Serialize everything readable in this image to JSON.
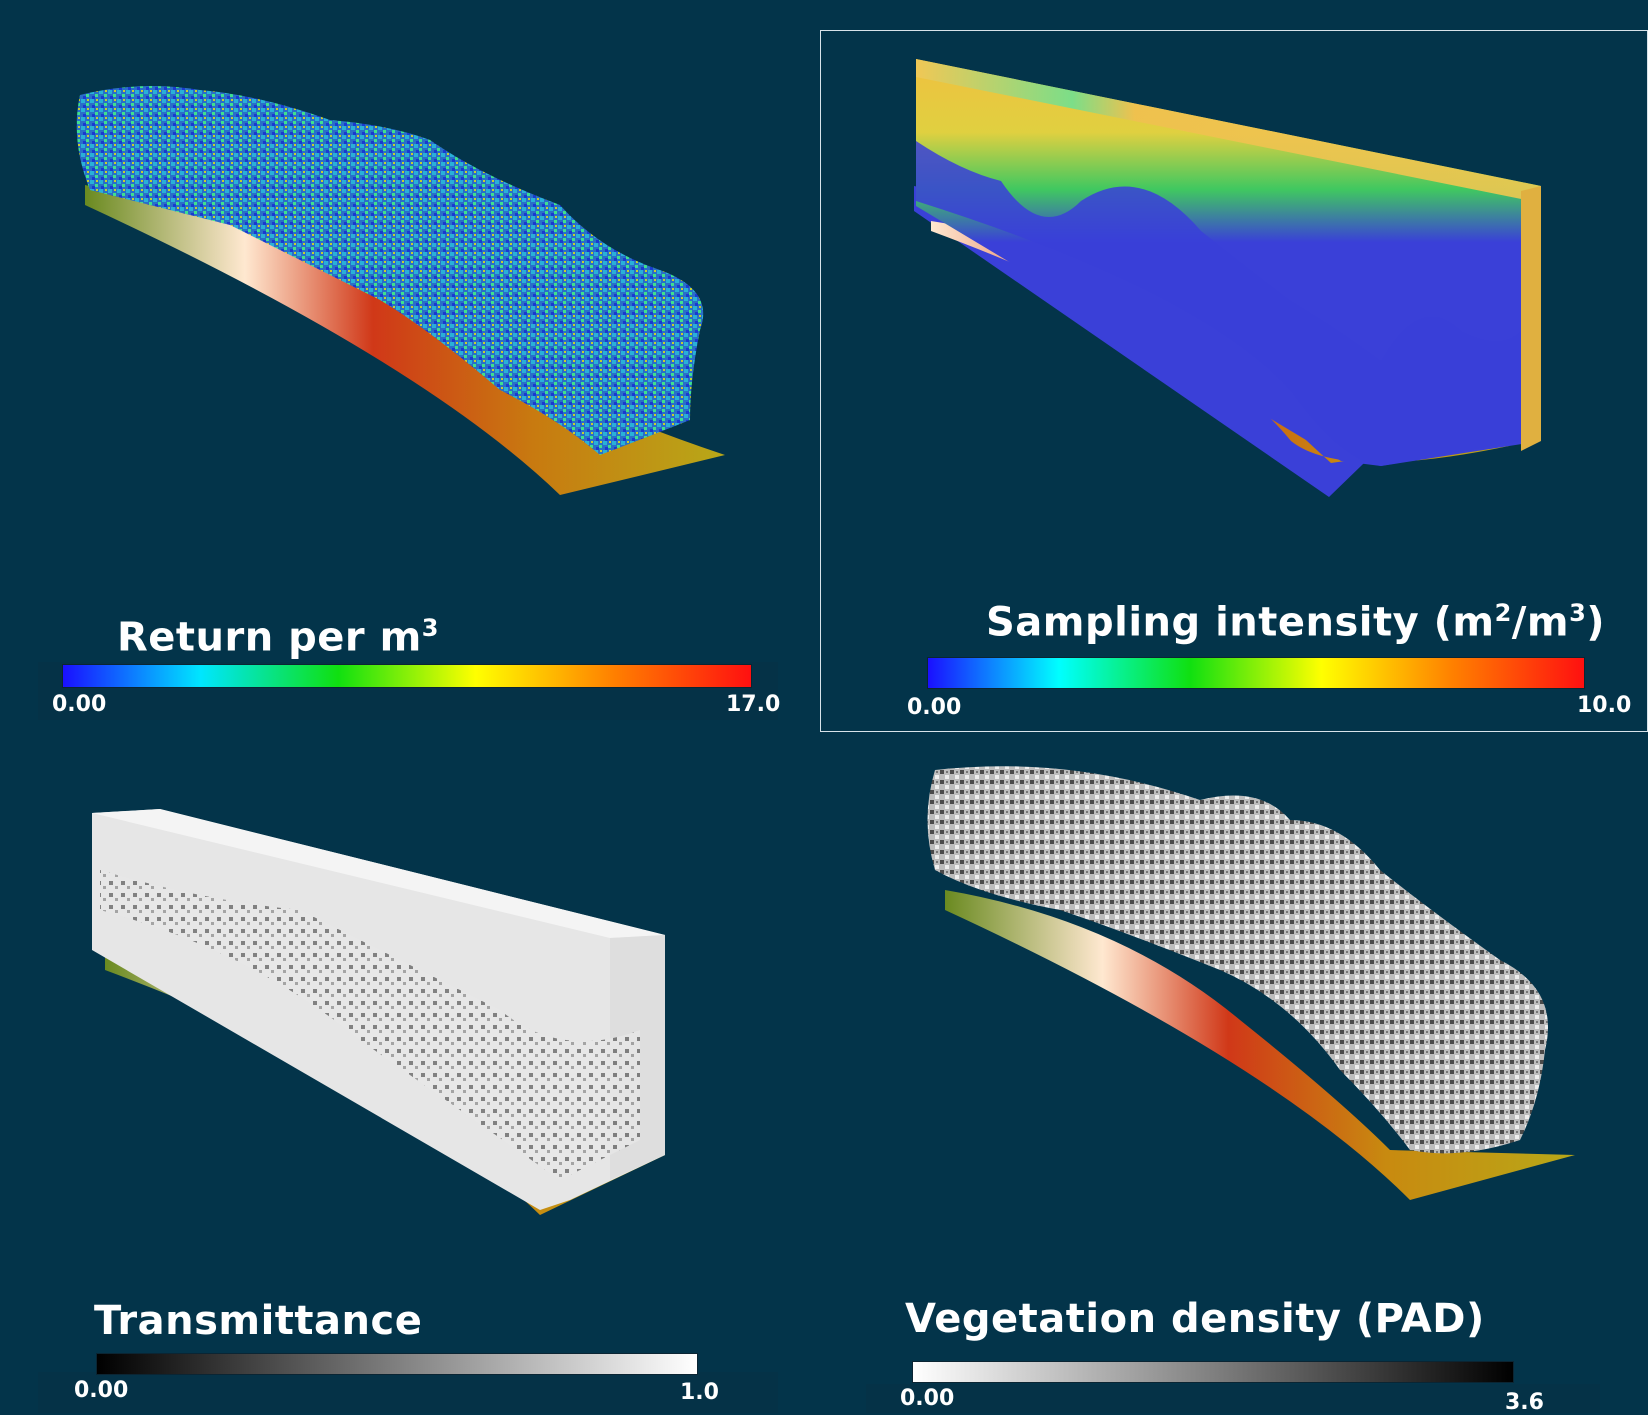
{
  "panels": {
    "returns": {
      "title_main": "Return per m",
      "title_sup": "3",
      "min": "0.00",
      "max": "17.0",
      "colormap": [
        "#1a10ff",
        "#00e6ff",
        "#10e010",
        "#ffff00",
        "#ff8000",
        "#ff1010"
      ]
    },
    "sampling": {
      "title_main": "Sampling intensity (m",
      "title_sup1": "2",
      "title_mid": "/m",
      "title_sup2": "3",
      "title_end": ")",
      "min": "0.00",
      "max": "10.0",
      "colormap": [
        "#1a10ff",
        "#00ffff",
        "#10e010",
        "#ffff00",
        "#ff8000",
        "#ff1010"
      ]
    },
    "transmittance": {
      "title": "Transmittance",
      "min": "0.00",
      "max": "1.0",
      "colormap": [
        "#000000",
        "#ffffff"
      ]
    },
    "pad": {
      "title": "Vegetation density (PAD)",
      "min": "0.00",
      "max": "3.6",
      "colormap": [
        "#ffffff",
        "#000000"
      ]
    }
  },
  "colors": {
    "background": "#03344a",
    "terrain_yellow": "#b8a818",
    "terrain_red": "#c83818",
    "terrain_hot": "#ffe6cf"
  }
}
